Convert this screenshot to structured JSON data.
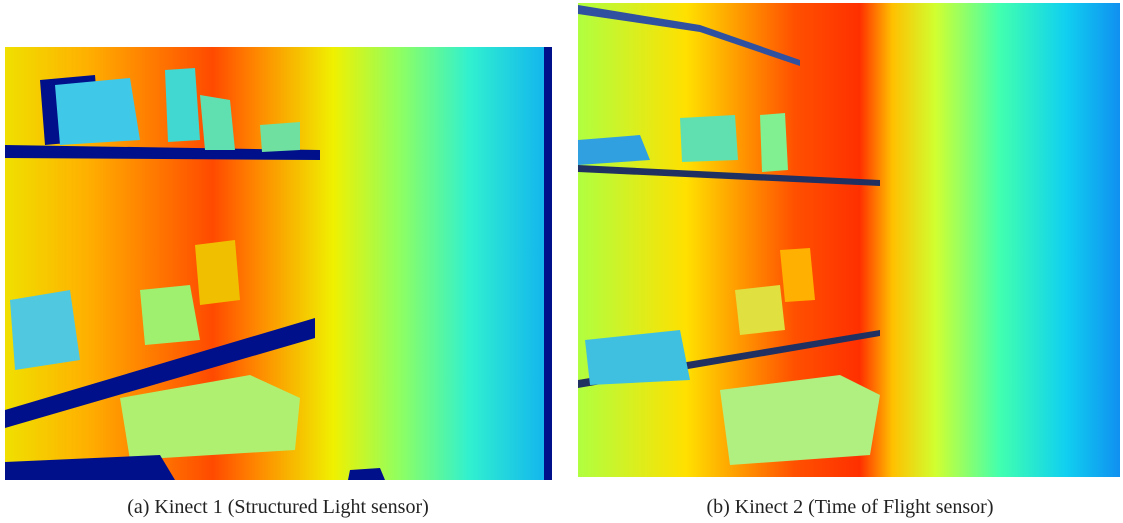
{
  "figures": [
    {
      "caption": "(a) Kinect 1 (Structured Light sensor)"
    },
    {
      "caption": "(b) Kinect 2 (Time of Flight sensor)"
    }
  ]
}
